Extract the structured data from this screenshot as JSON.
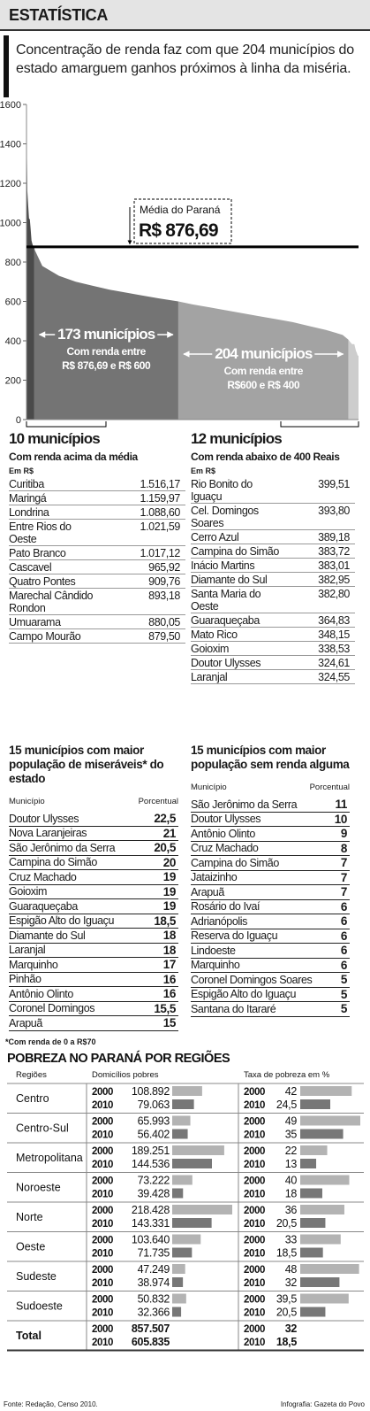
{
  "header": {
    "title": "ESTATÍSTICA",
    "lead": "Concentração de renda faz com que 204 municípios do estado amarguem ganhos próximos à linha da miséria."
  },
  "chart_data": {
    "type": "area",
    "ylim": [
      0,
      1600
    ],
    "yticks": [
      0,
      200,
      400,
      600,
      800,
      1000,
      1200,
      1400,
      1600
    ],
    "mean_title": "Média do Paraná",
    "mean": {
      "value": 876.69,
      "label": "R$ 876,69"
    },
    "mean_color": "#000000",
    "series": [
      {
        "color": "#4a4a4a",
        "x": [
          1,
          2,
          3,
          4,
          5,
          6,
          7,
          8,
          9,
          10
        ],
        "values": [
          1516.17,
          1159.97,
          1088.6,
          1021.59,
          1017.12,
          965.92,
          909.76,
          893.18,
          880.05,
          879.5
        ]
      },
      {
        "color": "#747474",
        "x": [
          10,
          11,
          20,
          40,
          60,
          80,
          100,
          120,
          140,
          160,
          183
        ],
        "values": [
          879.5,
          860,
          780,
          730,
          700,
          680,
          660,
          645,
          630,
          615,
          600
        ]
      },
      {
        "color": "#a3a3a3",
        "x": [
          183,
          200,
          220,
          240,
          260,
          280,
          300,
          320,
          340,
          360,
          380,
          387
        ],
        "values": [
          600,
          585,
          570,
          555,
          540,
          525,
          510,
          495,
          475,
          455,
          430,
          405
        ]
      },
      {
        "color": "#cdcdcd",
        "x": [
          387,
          388,
          389,
          390,
          391,
          392,
          393,
          394,
          395,
          396,
          397,
          398,
          399
        ],
        "values": [
          405,
          399.51,
          393.8,
          389.18,
          383.72,
          383.01,
          382.95,
          382.8,
          364.83,
          348.15,
          338.53,
          324.61,
          324.55
        ]
      }
    ],
    "groups": [
      {
        "title": "173 municípios",
        "text": [
          "Com renda entre",
          "R$ 876,69 e R$ 600"
        ]
      },
      {
        "title": "204 municípios",
        "text": [
          "Com renda entre",
          "R$600 e R$ 400"
        ]
      }
    ]
  },
  "top10": {
    "title": "10 municípios",
    "subtitle": "Com renda acima da média",
    "unit": "Em R$",
    "rows": [
      [
        "Curitiba",
        "1.516,17"
      ],
      [
        "Maringá",
        "1.159,97"
      ],
      [
        "Londrina",
        "1.088,60"
      ],
      [
        "Entre Rios do Oeste",
        "1.021,59"
      ],
      [
        "Pato Branco",
        "1.017,12"
      ],
      [
        "Cascavel",
        "965,92"
      ],
      [
        "Quatro Pontes",
        "909,76"
      ],
      [
        "Marechal Cândido Rondon",
        "893,18"
      ],
      [
        "Umuarama",
        "880,05"
      ],
      [
        "Campo Mourão",
        "879,50"
      ]
    ]
  },
  "bottom12": {
    "title": "12 municípios",
    "subtitle": "Com renda abaixo de 400 Reais",
    "unit": "Em R$",
    "rows": [
      [
        "Rio Bonito do Iguaçu",
        "399,51"
      ],
      [
        "Cel. Domingos Soares",
        "393,80"
      ],
      [
        "Cerro Azul",
        "389,18"
      ],
      [
        "Campina do Simão",
        "383,72"
      ],
      [
        "Inácio Martins",
        "383,01"
      ],
      [
        "Diamante do Sul",
        "382,95"
      ],
      [
        "Santa Maria do Oeste",
        "382,80"
      ],
      [
        "Guaraqueçaba",
        "364,83"
      ],
      [
        "Mato Rico",
        "348,15"
      ],
      [
        "Goioxim",
        "338,53"
      ],
      [
        "Doutor Ulysses",
        "324,61"
      ],
      [
        "Laranjal",
        "324,55"
      ]
    ]
  },
  "poor15": {
    "title": "15 municípios com maior população de miseráveis* do estado",
    "columns": [
      "Município",
      "Porcentual"
    ],
    "rows": [
      [
        "Doutor Ulysses",
        "22,5"
      ],
      [
        "Nova Laranjeiras",
        "21"
      ],
      [
        "São Jerônimo da Serra",
        "20,5"
      ],
      [
        "Campina do Simão",
        "20"
      ],
      [
        "Cruz Machado",
        "19"
      ],
      [
        "Goioxim",
        "19"
      ],
      [
        "Guaraqueçaba",
        "19"
      ],
      [
        "Espigão Alto do Iguaçu",
        "18,5"
      ],
      [
        "Diamante do Sul",
        "18"
      ],
      [
        "Laranjal",
        "18"
      ],
      [
        "Marquinho",
        "17"
      ],
      [
        "Pinhão",
        "16"
      ],
      [
        "Antônio Olinto",
        "16"
      ],
      [
        "Coronel Domingos",
        "15,5"
      ],
      [
        "Arapuã",
        "15"
      ]
    ]
  },
  "noincome15": {
    "title": "15 municípios com maior população sem renda alguma",
    "columns": [
      "Município",
      "Porcentual"
    ],
    "rows": [
      [
        "São Jerônimo da Serra",
        "11"
      ],
      [
        "Doutor Ulysses",
        "10"
      ],
      [
        "Antônio Olinto",
        "9"
      ],
      [
        "Cruz Machado",
        "8"
      ],
      [
        "Campina do Simão",
        "7"
      ],
      [
        "Jataizinho",
        "7"
      ],
      [
        "Arapuã",
        "7"
      ],
      [
        "Rosário do Ivaí",
        "6"
      ],
      [
        "Adrianópolis",
        "6"
      ],
      [
        "Reserva do Iguaçu",
        "6"
      ],
      [
        "Lindoeste",
        "6"
      ],
      [
        "Marquinho",
        "6"
      ],
      [
        "Coronel Domingos Soares",
        "5"
      ],
      [
        "Espigão Alto do Iguaçu",
        "5"
      ],
      [
        "Santana do Itararé",
        "5"
      ]
    ]
  },
  "footnote": "*Com renda de 0 a R$70",
  "regions": {
    "title": "POBREZA NO PARANÁ POR REGIÕES",
    "columns": [
      "Regiões",
      "Domicílios pobres",
      "Taxa de pobreza em %"
    ],
    "years": [
      "2000",
      "2010"
    ],
    "colors": [
      "#b3b3b3",
      "#777777"
    ],
    "rows": [
      {
        "name": "Centro",
        "households": [
          108892,
          79063
        ],
        "households_labels": [
          "108.892",
          "79.063"
        ],
        "rate": [
          42,
          24.5
        ],
        "rate_labels": [
          "42",
          "24,5"
        ]
      },
      {
        "name": "Centro-Sul",
        "households": [
          65993,
          56402
        ],
        "households_labels": [
          "65.993",
          "56.402"
        ],
        "rate": [
          49,
          35
        ],
        "rate_labels": [
          "49",
          "35"
        ]
      },
      {
        "name": "Metropolitana",
        "households": [
          189251,
          144536
        ],
        "households_labels": [
          "189.251",
          "144.536"
        ],
        "rate": [
          22,
          13
        ],
        "rate_labels": [
          "22",
          "13"
        ]
      },
      {
        "name": "Noroeste",
        "households": [
          73222,
          39428
        ],
        "households_labels": [
          "73.222",
          "39.428"
        ],
        "rate": [
          40,
          18
        ],
        "rate_labels": [
          "40",
          "18"
        ]
      },
      {
        "name": "Norte",
        "households": [
          218428,
          143331
        ],
        "households_labels": [
          "218.428",
          "143.331"
        ],
        "rate": [
          36,
          20.5
        ],
        "rate_labels": [
          "36",
          "20,5"
        ]
      },
      {
        "name": "Oeste",
        "households": [
          103640,
          71735
        ],
        "households_labels": [
          "103.640",
          "71.735"
        ],
        "rate": [
          33,
          18.5
        ],
        "rate_labels": [
          "33",
          "18,5"
        ]
      },
      {
        "name": "Sudeste",
        "households": [
          47249,
          38974
        ],
        "households_labels": [
          "47.249",
          "38.974"
        ],
        "rate": [
          48,
          32
        ],
        "rate_labels": [
          "48",
          "32"
        ]
      },
      {
        "name": "Sudoeste",
        "households": [
          50832,
          32366
        ],
        "households_labels": [
          "50.832",
          "32.366"
        ],
        "rate": [
          39.5,
          20.5
        ],
        "rate_labels": [
          "39,5",
          "20,5"
        ]
      }
    ],
    "total": {
      "name": "Total",
      "households_labels": [
        "857.507",
        "605.835"
      ],
      "rate_labels": [
        "32",
        "18,5"
      ]
    }
  },
  "footer": {
    "source": "Fonte: Redação, Censo 2010.",
    "credit": "Infografia: Gazeta do Povo"
  }
}
